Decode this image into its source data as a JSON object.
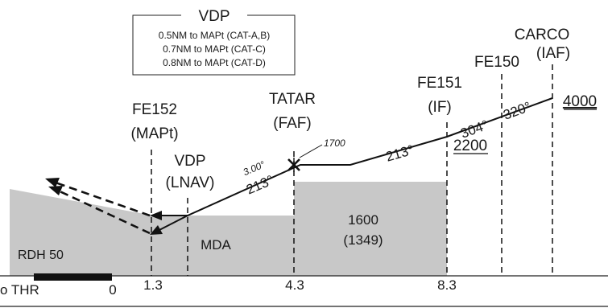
{
  "vdp_box": {
    "title": "VDP",
    "lines": [
      "0.5NM to MAPt (CAT-A,B)",
      "0.7NM to MAPt (CAT-C)",
      "0.8NM to MAPt (CAT-D)"
    ]
  },
  "fixes": {
    "carco": {
      "name": "CARCO",
      "role": "(IAF)"
    },
    "fe150": {
      "name": "FE150"
    },
    "fe151": {
      "name": "FE151",
      "role": "(IF)"
    },
    "tatar": {
      "name": "TATAR",
      "role": "(FAF)"
    },
    "fe152": {
      "name": "FE152",
      "role": "(MAPt)"
    },
    "vdp_lnav": {
      "name": "VDP",
      "role": "(LNAV)"
    }
  },
  "altitudes": {
    "carco": "4000",
    "fe151": "2200",
    "tatar_ft": "1700"
  },
  "courses": {
    "seg1": "320°",
    "seg2": "304°",
    "seg3": "213°",
    "final": "213°",
    "glidepath": "3.00°"
  },
  "minimums": {
    "step_alt": "1600",
    "step_hat": "(1349)",
    "mda": "MDA",
    "rdh": "RDH 50"
  },
  "distances": {
    "thr_label": "o THR",
    "thr": "0",
    "fe152": "1.3",
    "tatar": "4.3",
    "fe151": "8.3"
  }
}
